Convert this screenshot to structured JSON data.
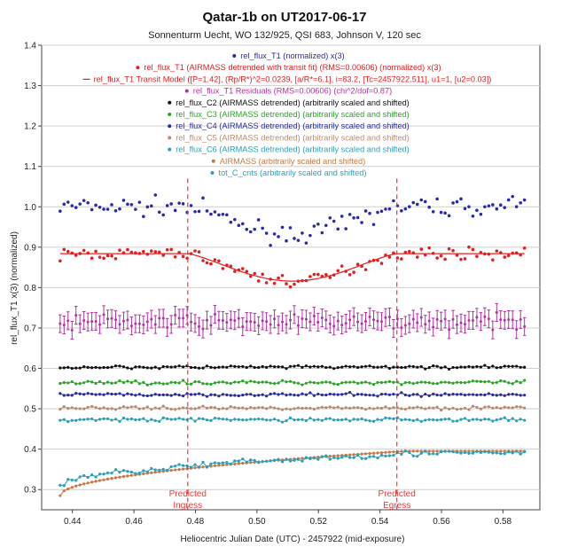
{
  "chart_data": {
    "type": "scatter",
    "title": "Qatar-1b on UT2017-06-17",
    "subtitle": "Sonnenturm Uecht, WO 132/925, QSI 683, Johnson V, 120 sec",
    "xlabel": "Heliocentric Julian Date (UTC) - 2457922 (mid-exposure)",
    "ylabel": "rel_flux_T1 x(3) (normalized)",
    "xlim": [
      0.43,
      0.592
    ],
    "ylim": [
      0.25,
      1.4
    ],
    "xticks": [
      "0.44",
      "0.46",
      "0.48",
      "0.50",
      "0.52",
      "0.54",
      "0.56",
      "0.58"
    ],
    "yticks": [
      "0.3",
      "0.4",
      "0.5",
      "0.6",
      "0.7",
      "0.8",
      "0.9",
      "1.0",
      "1.1",
      "1.2",
      "1.3",
      "1.4"
    ],
    "grid": "horizontal",
    "legend_position": "top-center",
    "transit_model": {
      "baseline": 0.884,
      "depth": 0.068,
      "ingress": 0.4775,
      "egress": 0.5455
    },
    "annotations": [
      {
        "label": [
          "Predicted",
          "Ingress"
        ],
        "x": 0.4775
      },
      {
        "label": [
          "Predicted",
          "Egress"
        ],
        "x": 0.5455
      }
    ],
    "series": [
      {
        "name": "rel_flux_T1 (normalized) x(3)",
        "color": "#2b2ba8",
        "kind": "points",
        "level": 1.0,
        "depth": 0.068,
        "noise": 0.022
      },
      {
        "name": "rel_flux_T1 (AIRMASS detrended with transit fit) (RMS=0.00606) (normalized) x(3)",
        "color": "#e02020",
        "kind": "points",
        "level": 0.884,
        "depth": 0.068,
        "noise": 0.014
      },
      {
        "name": "rel_flux_T1 Transit Model ([P=1.42], (Rp/R*)^2=0.0239, [a/R*=6.1], i=83.2, [Tc=2457922.511], u1=1, [u2=0.03])",
        "color": "#e02020",
        "kind": "model",
        "level": 0.884,
        "depth": 0.068
      },
      {
        "name": "rel_flux_T1 Residuals (RMS=0.00606) (chi^2/dof=0.87)",
        "color": "#b2329e",
        "kind": "errorbars",
        "level": 0.715,
        "noise": 0.017,
        "err": 0.022
      },
      {
        "name": "rel_flux_C2 (AIRMASS detrended) (arbitrarily scaled and shifted)",
        "color": "#111111",
        "kind": "line",
        "level": 0.603,
        "noise": 0.004
      },
      {
        "name": "rel_flux_C3 (AIRMASS detrended) (arbitrarily scaled and shifted)",
        "color": "#2da32d",
        "kind": "line",
        "level": 0.565,
        "noise": 0.005
      },
      {
        "name": "rel_flux_C4 (AIRMASS detrended) (arbitrarily scaled and shifted)",
        "color": "#2b2b9e",
        "kind": "line",
        "level": 0.535,
        "noise": 0.004
      },
      {
        "name": "rel_flux_C5 (AIRMASS detrended) (arbitrarily scaled and shifted)",
        "color": "#b98a72",
        "kind": "line",
        "level": 0.502,
        "noise": 0.004
      },
      {
        "name": "rel_flux_C6 (AIRMASS detrended) (arbitrarily scaled and shifted)",
        "color": "#2aa0b8",
        "kind": "line",
        "level": 0.473,
        "noise": 0.005
      },
      {
        "name": "AIRMASS (arbitrarily scaled and shifted)",
        "color": "#c47a4a",
        "kind": "airmass",
        "start": 0.285,
        "end": 0.395
      },
      {
        "name": "tot_C_cnts (arbitrarily scaled and shifted)",
        "color": "#2aa0b8",
        "kind": "counts",
        "start": 0.31,
        "end": 0.39
      }
    ]
  }
}
